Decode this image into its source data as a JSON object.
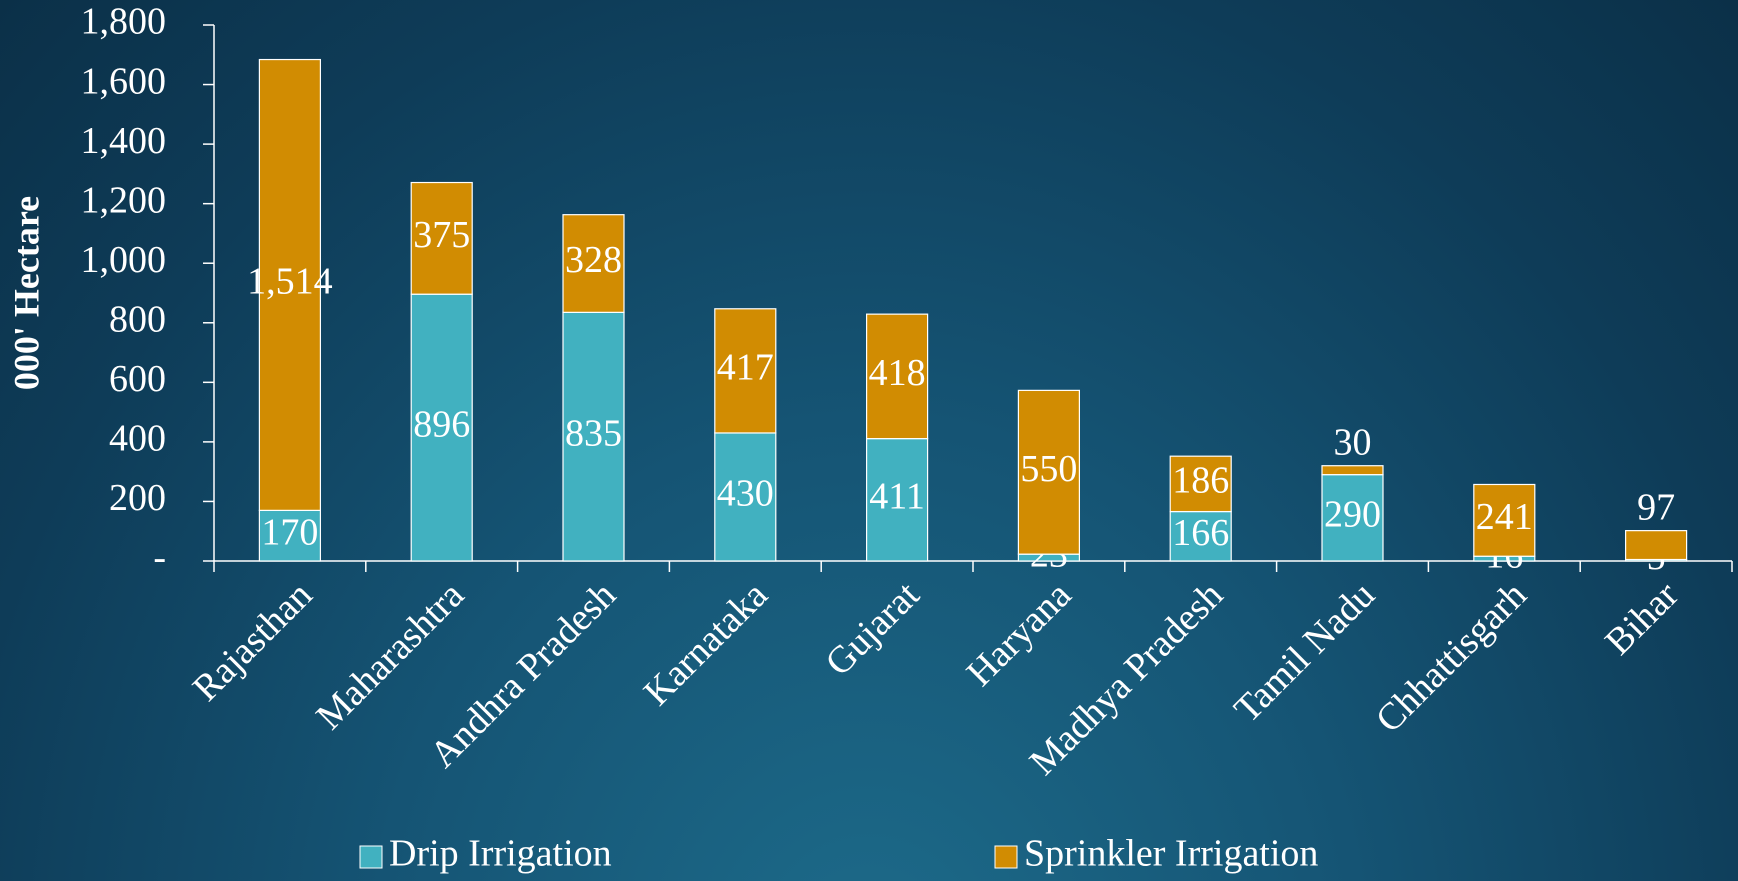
{
  "chart_data": {
    "type": "stacked_bar",
    "y_label": "000' Hectare",
    "categories": [
      "Rajasthan",
      "Maharashtra",
      "Andhra Pradesh",
      "Karnataka",
      "Gujarat",
      "Haryana",
      "Madhya Pradesh",
      "Tamil Nadu",
      "Chhattisgarh",
      "Bihar"
    ],
    "series": [
      {
        "name": "Drip Irrigation",
        "color": "#41b1c0",
        "values": [
          170,
          896,
          835,
          430,
          411,
          23,
          166,
          290,
          16,
          5
        ]
      },
      {
        "name": "Sprinkler Irrigation",
        "color": "#d18c02",
        "values": [
          1514,
          375,
          328,
          417,
          418,
          550,
          186,
          30,
          241,
          97
        ],
        "value_labels": [
          "1,514",
          "375",
          "328",
          "417",
          "418",
          "550",
          "186",
          "30",
          "241",
          "97"
        ]
      }
    ],
    "ylim": [
      0,
      1800
    ],
    "yticks": [
      {
        "value": 0,
        "label": "-"
      },
      200,
      400,
      600,
      800,
      {
        "value": 1000,
        "label": "1,000"
      },
      {
        "value": 1200,
        "label": "1,200"
      },
      {
        "value": 1400,
        "label": "1,400"
      },
      {
        "value": 1600,
        "label": "1,600"
      },
      {
        "value": 1800,
        "label": "1,800"
      }
    ],
    "legend": "bottom"
  }
}
